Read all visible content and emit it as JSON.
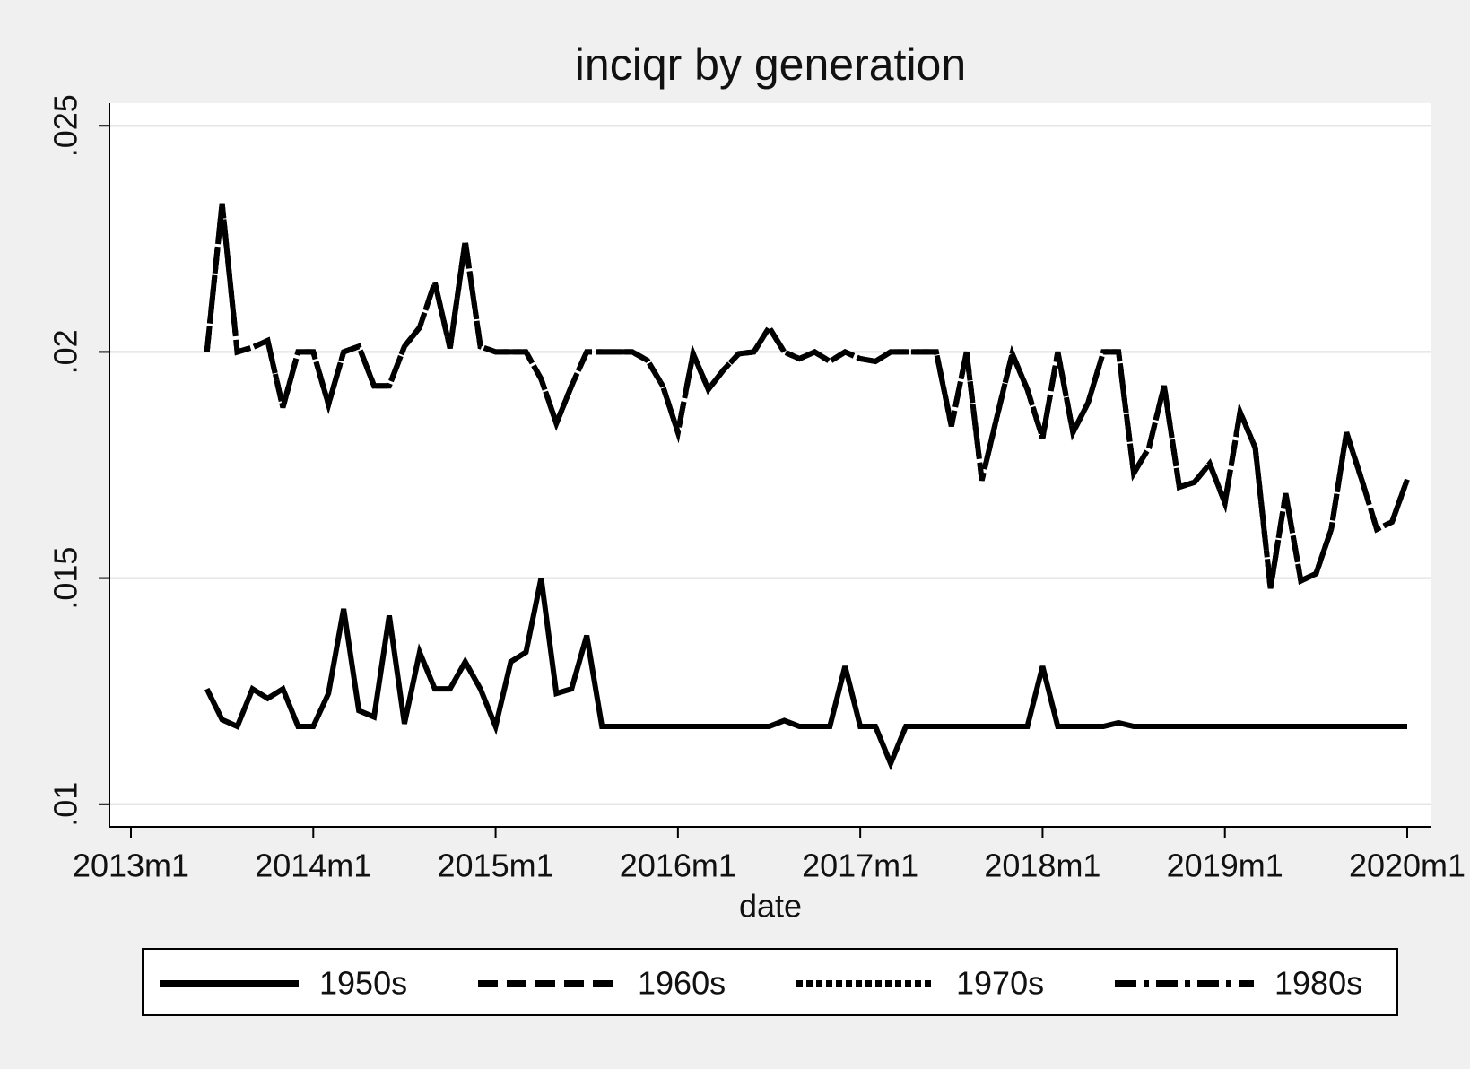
{
  "chart_data": {
    "type": "line",
    "title": "inciqr by generation",
    "x_label": "date",
    "x": [
      "2013m6",
      "2013m7",
      "2013m8",
      "2013m9",
      "2013m10",
      "2013m11",
      "2013m12",
      "2014m1",
      "2014m2",
      "2014m3",
      "2014m4",
      "2014m5",
      "2014m6",
      "2014m7",
      "2014m8",
      "2014m9",
      "2014m10",
      "2014m11",
      "2014m12",
      "2015m1",
      "2015m2",
      "2015m3",
      "2015m4",
      "2015m5",
      "2015m6",
      "2015m7",
      "2015m8",
      "2015m9",
      "2015m10",
      "2015m11",
      "2015m12",
      "2016m1",
      "2016m2",
      "2016m3",
      "2016m4",
      "2016m5",
      "2016m6",
      "2016m7",
      "2016m8",
      "2016m9",
      "2016m10",
      "2016m11",
      "2016m12",
      "2017m1",
      "2017m2",
      "2017m3",
      "2017m4",
      "2017m5",
      "2017m6",
      "2017m7",
      "2017m8",
      "2017m9",
      "2017m10",
      "2017m11",
      "2017m12",
      "2018m1",
      "2018m2",
      "2018m3",
      "2018m4",
      "2018m5",
      "2018m6",
      "2018m7",
      "2018m8",
      "2018m9",
      "2018m10",
      "2018m11",
      "2018m12",
      "2019m1",
      "2019m2",
      "2019m3",
      "2019m4",
      "2019m5",
      "2019m6",
      "2019m7",
      "2019m8",
      "2019m9",
      "2019m10",
      "2019m11",
      "2019m12",
      "2020m1"
    ],
    "series": [
      {
        "name": "1950s",
        "color": "#000000",
        "line_style": "solid",
        "values": [
          0.01255,
          0.01187,
          0.01172,
          0.01255,
          0.01234,
          0.01255,
          0.01172,
          0.01172,
          0.01245,
          0.01432,
          0.01207,
          0.01193,
          0.01417,
          0.01178,
          0.01336,
          0.01255,
          0.01255,
          0.01315,
          0.01255,
          0.01172,
          0.01315,
          0.01336,
          0.015,
          0.01245,
          0.01255,
          0.01373,
          0.01172,
          0.01172,
          0.01172,
          0.01172,
          0.01172,
          0.01172,
          0.01172,
          0.01172,
          0.01172,
          0.01172,
          0.01172,
          0.01172,
          0.01185,
          0.01172,
          0.01172,
          0.01172,
          0.01305,
          0.01172,
          0.01172,
          0.0109,
          0.01172,
          0.01172,
          0.01172,
          0.01172,
          0.01172,
          0.01172,
          0.01172,
          0.01172,
          0.01172,
          0.01305,
          0.01172,
          0.01172,
          0.01172,
          0.01172,
          0.0118,
          0.01172,
          0.01172,
          0.01172,
          0.01172,
          0.01172,
          0.01172,
          0.01172,
          0.01172,
          0.01172,
          0.01172,
          0.01172,
          0.01172,
          0.01172,
          0.01172,
          0.01172,
          0.01172,
          0.01172,
          0.01172,
          0.01172
        ]
      },
      {
        "name": "1960s",
        "color": "#000000",
        "line_style": "dash",
        "values": [
          0.02,
          0.02328,
          0.02,
          0.0201,
          0.02025,
          0.01877,
          0.02,
          0.02,
          0.01884,
          0.02,
          0.02012,
          0.01925,
          0.01925,
          0.02012,
          0.02054,
          0.02154,
          0.02008,
          0.02245,
          0.02012,
          0.02,
          0.02,
          0.02,
          0.0194,
          0.01842,
          0.01925,
          0.02,
          0.02,
          0.02,
          0.02,
          0.01981,
          0.01925,
          0.01822,
          0.01996,
          0.01917,
          0.0196,
          0.01996,
          0.02,
          0.02054,
          0.02,
          0.01985,
          0.02,
          0.01979,
          0.02,
          0.01985,
          0.01979,
          0.02,
          0.02,
          0.02,
          0.02,
          0.01836,
          0.02,
          0.01716,
          0.01857,
          0.01996,
          0.01917,
          0.01809,
          0.02,
          0.01822,
          0.01888,
          0.02,
          0.02,
          0.01732,
          0.01788,
          0.01925,
          0.01701,
          0.01712,
          0.01753,
          0.01666,
          0.01867,
          0.01788,
          0.01477,
          0.01687,
          0.01494,
          0.0151,
          0.01608,
          0.01822,
          0.01718,
          0.01608,
          0.01624,
          0.01718
        ]
      },
      {
        "name": "1970s",
        "color": "#000000",
        "line_style": "dot",
        "values": [
          0.02,
          0.02328,
          0.02,
          0.0201,
          0.02025,
          0.01877,
          0.02,
          0.02,
          0.01884,
          0.02,
          0.02012,
          0.01925,
          0.01925,
          0.02012,
          0.02054,
          0.02154,
          0.02008,
          0.02245,
          0.02012,
          0.02,
          0.02,
          0.02,
          0.0194,
          0.01842,
          0.01925,
          0.02,
          0.02,
          0.02,
          0.02,
          0.01981,
          0.01925,
          0.01822,
          0.01996,
          0.01917,
          0.0196,
          0.01996,
          0.02,
          0.02054,
          0.02,
          0.01985,
          0.02,
          0.01979,
          0.02,
          0.01985,
          0.01979,
          0.02,
          0.02,
          0.02,
          0.02,
          0.01836,
          0.02,
          0.01716,
          0.01857,
          0.01996,
          0.01917,
          0.01809,
          0.02,
          0.01822,
          0.01888,
          0.02,
          0.02,
          0.01732,
          0.01788,
          0.01925,
          0.01701,
          0.01712,
          0.01753,
          0.01666,
          0.01867,
          0.01788,
          0.01477,
          0.01687,
          0.01494,
          0.0151,
          0.01608,
          0.01822,
          0.01718,
          0.01608,
          0.01624,
          0.01718
        ]
      },
      {
        "name": "1980s",
        "color": "#000000",
        "line_style": "dash-dot",
        "values": [
          0.02,
          0.02328,
          0.02,
          0.0201,
          0.02025,
          0.01877,
          0.02,
          0.02,
          0.01884,
          0.02,
          0.02012,
          0.01925,
          0.01925,
          0.02012,
          0.02054,
          0.02154,
          0.02008,
          0.02245,
          0.02012,
          0.02,
          0.02,
          0.02,
          0.0194,
          0.01842,
          0.01925,
          0.02,
          0.02,
          0.02,
          0.02,
          0.01981,
          0.01925,
          0.01822,
          0.01996,
          0.01917,
          0.0196,
          0.01996,
          0.02,
          0.02054,
          0.02,
          0.01985,
          0.02,
          0.01979,
          0.02,
          0.01985,
          0.01979,
          0.02,
          0.02,
          0.02,
          0.02,
          0.01836,
          0.02,
          0.01716,
          0.01857,
          0.01996,
          0.01917,
          0.01809,
          0.02,
          0.01822,
          0.01888,
          0.02,
          0.02,
          0.01732,
          0.01788,
          0.01925,
          0.01701,
          0.01712,
          0.01753,
          0.01666,
          0.01867,
          0.01788,
          0.01477,
          0.01687,
          0.01494,
          0.0151,
          0.01608,
          0.01822,
          0.01718,
          0.01608,
          0.01624,
          0.01718
        ]
      }
    ],
    "xlim": [
      "2013m1",
      "2020m1"
    ],
    "xticks": [
      "2013m1",
      "2014m1",
      "2015m1",
      "2016m1",
      "2017m1",
      "2018m1",
      "2019m1",
      "2020m1"
    ],
    "ylim": [
      0.0095,
      0.0255
    ],
    "yticks": [
      {
        "value": 0.01,
        "label": ".01"
      },
      {
        "value": 0.015,
        "label": ".015"
      },
      {
        "value": 0.02,
        "label": ".02"
      },
      {
        "value": 0.025,
        "label": ".025"
      }
    ],
    "grid": true,
    "legend_position": "bottom"
  }
}
